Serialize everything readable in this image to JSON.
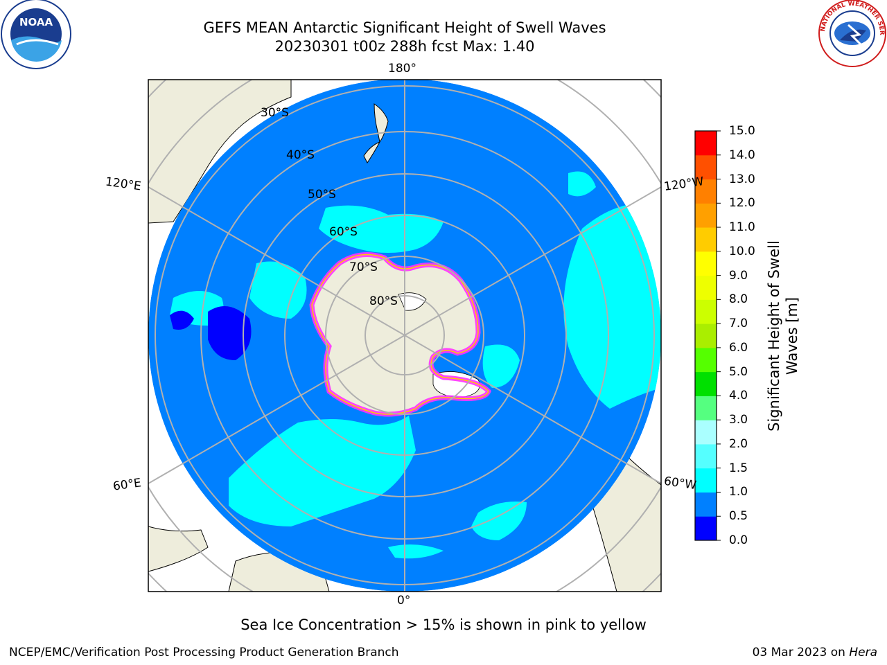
{
  "title": {
    "line1": "GEFS MEAN Antarctic Significant Height of Swell Waves",
    "line2": "20230301 t00z 288h fcst   Max: 1.40"
  },
  "map": {
    "projection": "south-polar-stereographic",
    "meridian_labels": {
      "top": "180°",
      "bottom": "0°",
      "left_upper": "120°E",
      "left_lower": "60°E",
      "right_upper": "120°W",
      "right_lower": "60°W"
    },
    "parallel_labels": [
      "30°S",
      "40°S",
      "50°S",
      "60°S",
      "70°S",
      "80°S"
    ],
    "colors": {
      "ocean_base": "#0080ff",
      "land": "#eeeddc",
      "ice_edge": "#ff33ff",
      "grid": "#b0b0b0"
    }
  },
  "colorbar": {
    "label_line1": "Significant Height of Swell",
    "label_line2": "Waves [m]",
    "ticks": [
      "15.0",
      "14.0",
      "13.0",
      "12.0",
      "11.0",
      "10.0",
      "9.0",
      "8.0",
      "7.0",
      "6.0",
      "5.0",
      "4.0",
      "3.0",
      "2.0",
      "1.5",
      "1.0",
      "0.5",
      "0.0"
    ],
    "bands_bottom_to_top": [
      "#0000ff",
      "#0080ff",
      "#00ffff",
      "#55ffff",
      "#aaffff",
      "#55ff80",
      "#00e000",
      "#55ff00",
      "#aaee00",
      "#ccff00",
      "#eeff00",
      "#ffff00",
      "#ffcc00",
      "#ffa000",
      "#ff8000",
      "#ff5000",
      "#ff0000"
    ]
  },
  "note": "Sea Ice Concentration > 15% is shown in pink to yellow",
  "footer": {
    "left": "NCEP/EMC/Verification Post Processing Product Generation Branch",
    "right_date": "03 Mar 2023 on",
    "right_host": "Hera"
  },
  "logos": {
    "noaa_text": "NOAA",
    "nws_text": "NATIONAL WEATHER SERVICE"
  }
}
